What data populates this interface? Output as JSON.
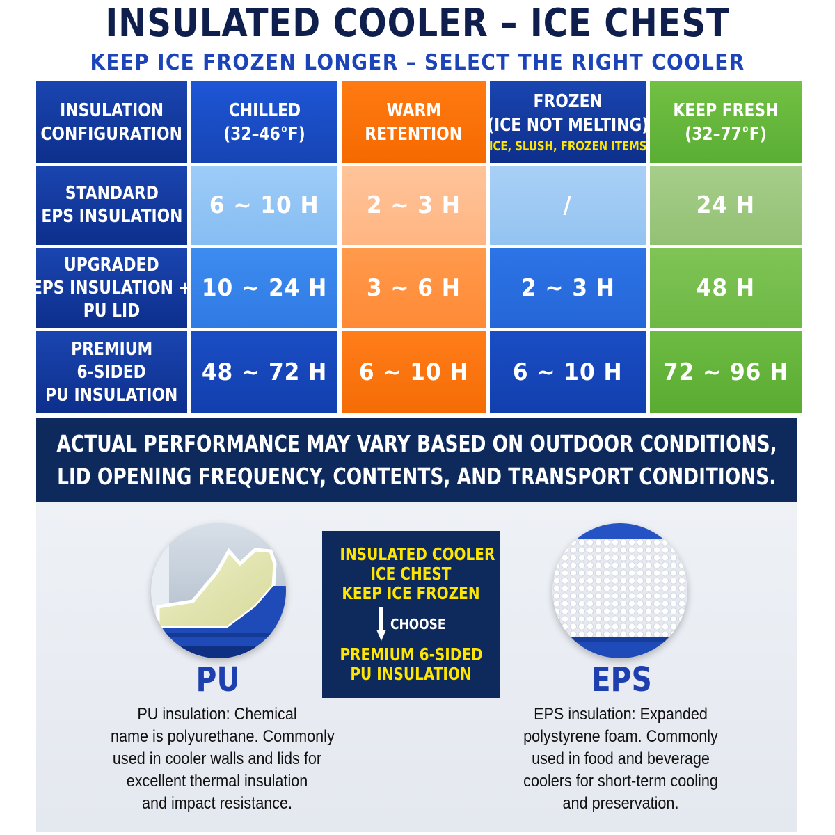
{
  "title": "INSULATED COOLER – ICE CHEST",
  "subtitle": "KEEP ICE FROZEN LONGER – SELECT THE RIGHT COOLER",
  "table": {
    "headers": [
      {
        "lines": [
          "INSULATION",
          "CONFIGURATION"
        ]
      },
      {
        "lines": [
          "CHILLED",
          "(32–46°F)"
        ]
      },
      {
        "lines": [
          "WARM",
          "RETENTION"
        ]
      },
      {
        "lines": [
          "FROZEN",
          "(ICE NOT MELTING)"
        ],
        "note": "ICE, SLUSH, FROZEN ITEMS"
      },
      {
        "lines": [
          "KEEP FRESH",
          "(32–77°F)"
        ]
      }
    ],
    "rows": [
      {
        "label": [
          "STANDARD",
          "EPS INSULATION"
        ],
        "chilled": "6 ~ 10 H",
        "warm": "2 ~ 3 H",
        "frozen": "/",
        "fresh": "24 H"
      },
      {
        "label": [
          "UPGRADED",
          "EPS INSULATION +",
          "PU LID"
        ],
        "chilled": "10 ~ 24 H",
        "warm": "3 ~ 6 H",
        "frozen": "2 ~ 3 H",
        "fresh": "48 H"
      },
      {
        "label": [
          "PREMIUM",
          "6-SIDED",
          "PU INSULATION"
        ],
        "chilled": "48 ~ 72 H",
        "warm": "6 ~ 10 H",
        "frozen": "6 ~ 10 H",
        "fresh": "72 ~ 96 H"
      }
    ]
  },
  "disclaimer": {
    "line1": "ACTUAL PERFORMANCE MAY VARY BASED ON OUTDOOR CONDITIONS,",
    "line2": "LID OPENING FREQUENCY, CONTENTS, AND TRANSPORT CONDITIONS."
  },
  "pu": {
    "title": "PU",
    "desc": [
      "PU insulation: Chemical",
      "name is polyurethane. Commonly",
      "used in cooler walls and lids for",
      "excellent thermal insulation",
      "and impact resistance."
    ]
  },
  "eps": {
    "title": "EPS",
    "desc": [
      "EPS insulation: Expanded",
      "polystyrene foam. Commonly",
      "used in food and beverage",
      "coolers for short-term cooling",
      "and preservation."
    ]
  },
  "choose": {
    "top": [
      "INSULATED COOLER",
      "ICE CHEST",
      "KEEP ICE FROZEN"
    ],
    "word": "CHOOSE",
    "bottom": [
      "PREMIUM 6-SIDED",
      "PU INSULATION"
    ]
  },
  "colors": {
    "navy": "#0e2a5c",
    "blue": "#1e56d6",
    "orange": "#ff7a12",
    "green": "#6dbb42",
    "yellow": "#ffe600"
  }
}
